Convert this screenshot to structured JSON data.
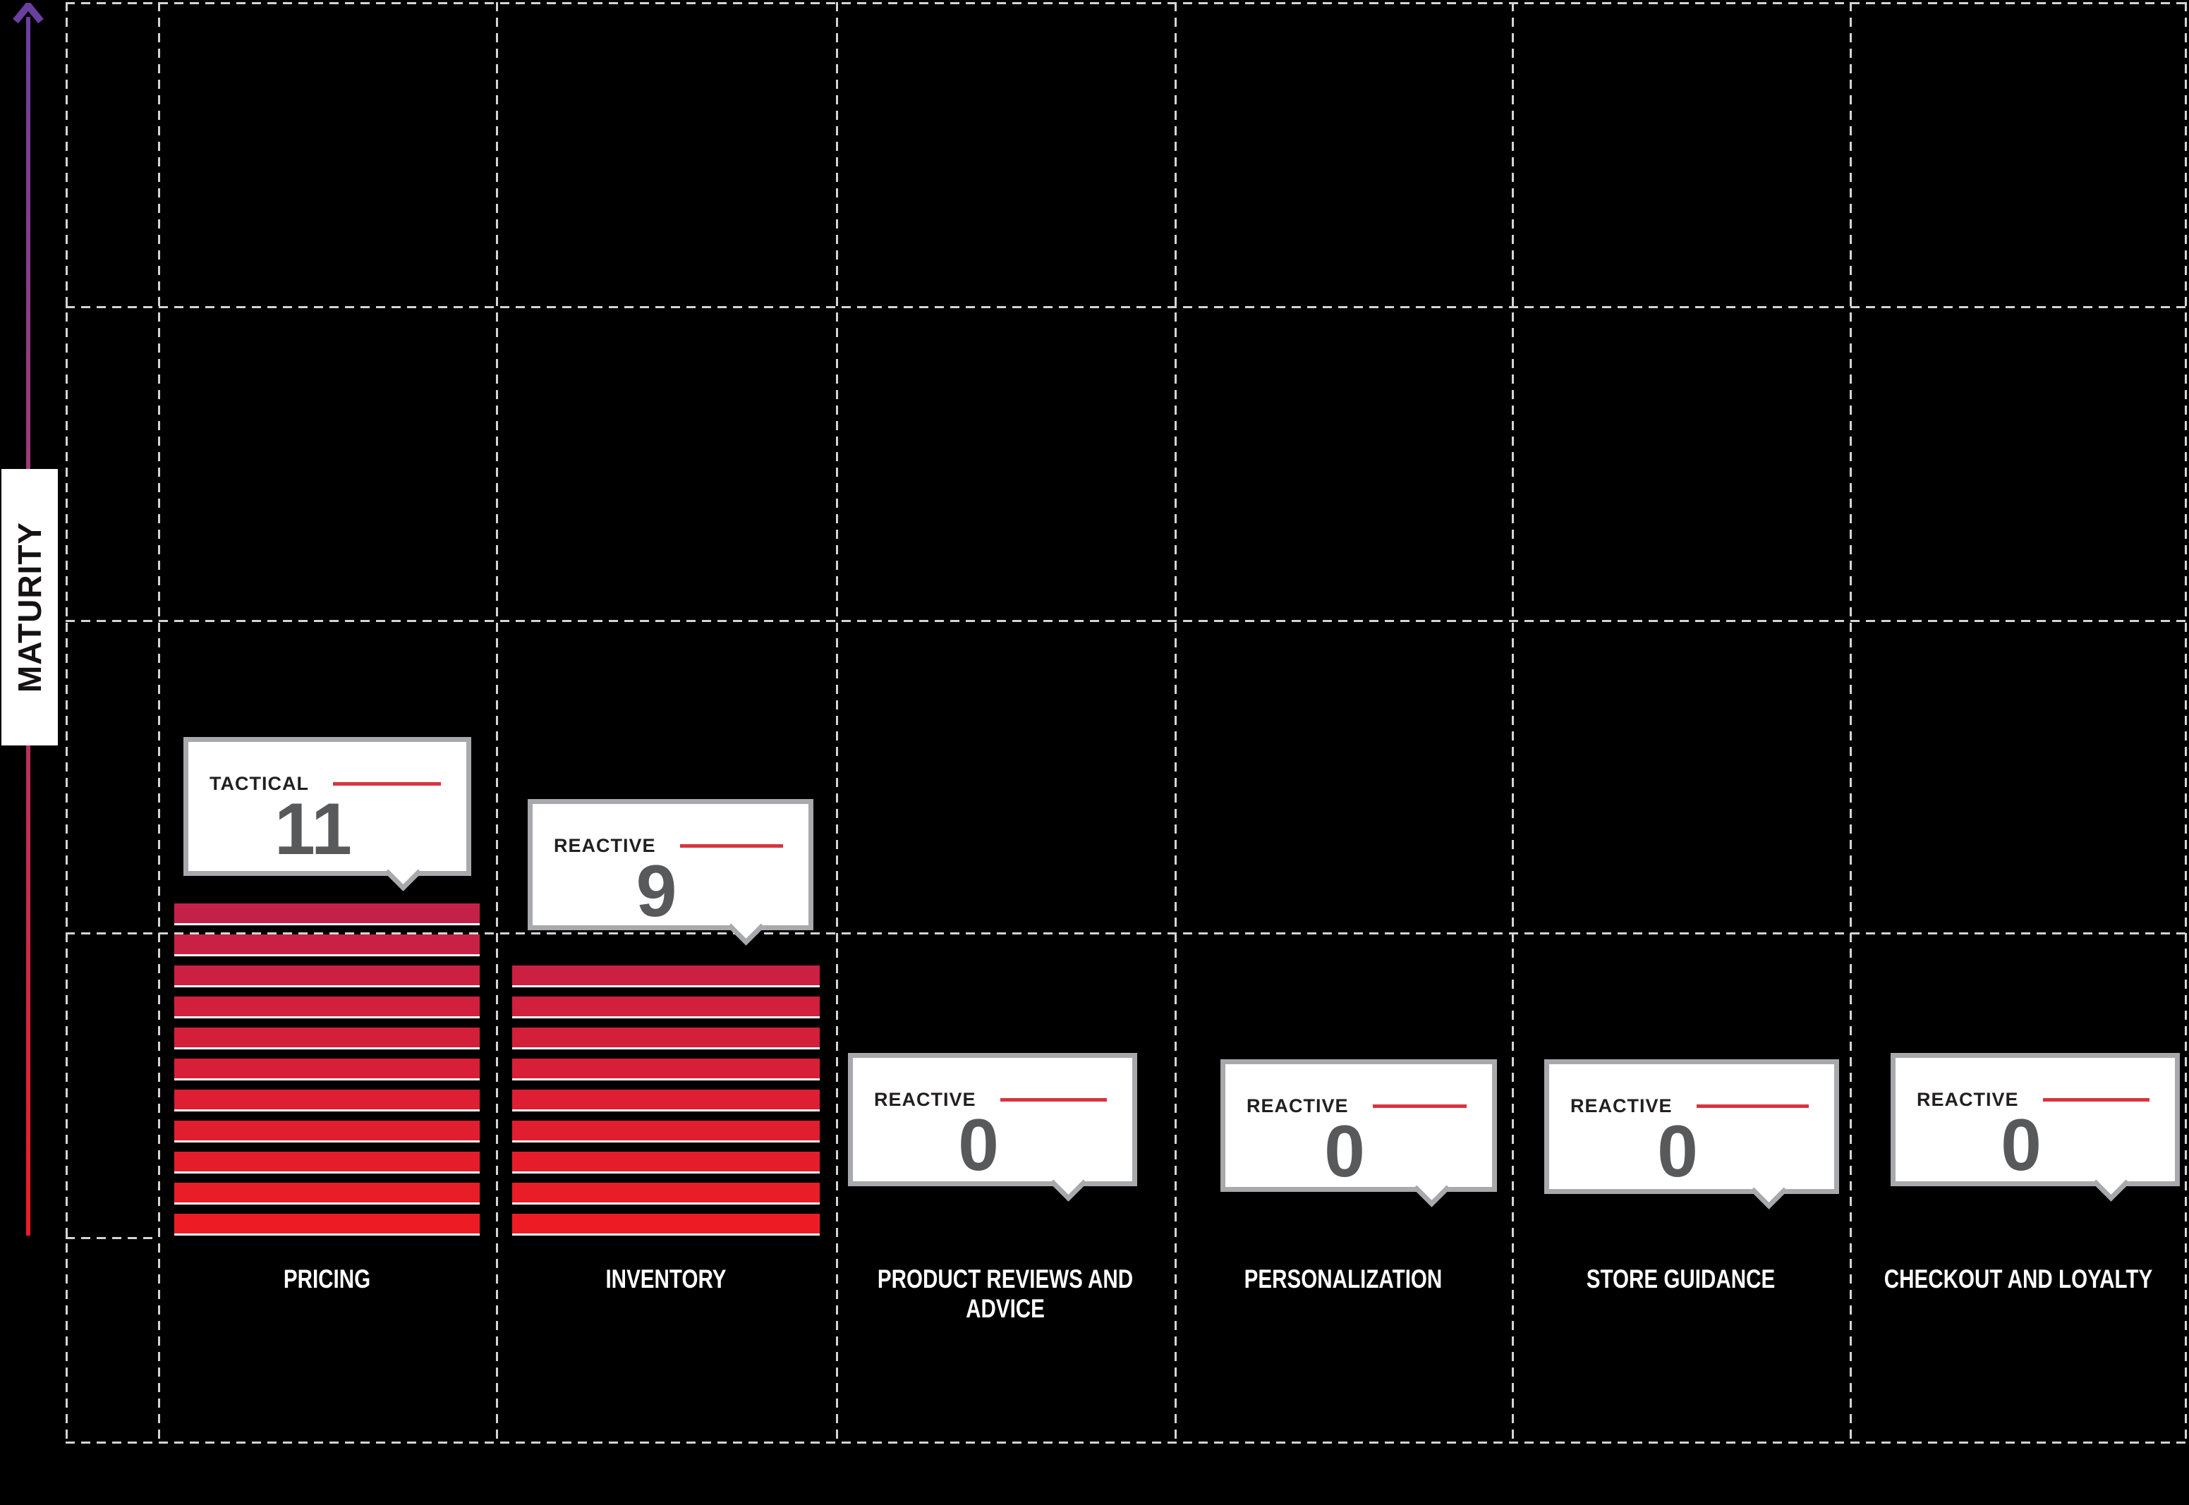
{
  "chart_data": {
    "type": "bar",
    "title": "",
    "ylabel": "MATURITY",
    "xlabel": "",
    "categories": [
      "PRICING",
      "INVENTORY",
      "PRODUCT REVIEWS AND ADVICE",
      "PERSONALIZATION",
      "STORE GUIDANCE",
      "CHECKOUT AND LOYALTY"
    ],
    "values": [
      11,
      9,
      0,
      0,
      0,
      0
    ],
    "maturity_levels": [
      "TACTICAL",
      "REACTIVE",
      "REACTIVE",
      "REACTIVE",
      "REACTIVE",
      "REACTIVE"
    ],
    "ylim": [
      0,
      40
    ],
    "y_gridline_interval": 10,
    "units_per_stripe": 1,
    "grid": "dashed",
    "legend_position": "none",
    "bar_style": "horizontal stripes, one stripe per unit",
    "annotations": "each bar has a callout box showing maturity level name and numeric value"
  },
  "colors": {
    "background": "#000000",
    "grid": "#d4d4d4",
    "bar_bottom": "#ed1c24",
    "bar_top": "#c42149",
    "stripe_edge": "#ffffff",
    "category_label": "#ffffff",
    "tooltip_bg": "#ffffff",
    "tooltip_border": "#a7a9ac",
    "tooltip_label": "#231f20",
    "tooltip_line": "#d8353e",
    "tooltip_number": "#58595b",
    "axis_arrow_top": "#6b3fa0",
    "axis_arrow_bottom": "#ec1c24",
    "axis_label_bg": "#ffffff",
    "axis_label_text": "#161214"
  }
}
